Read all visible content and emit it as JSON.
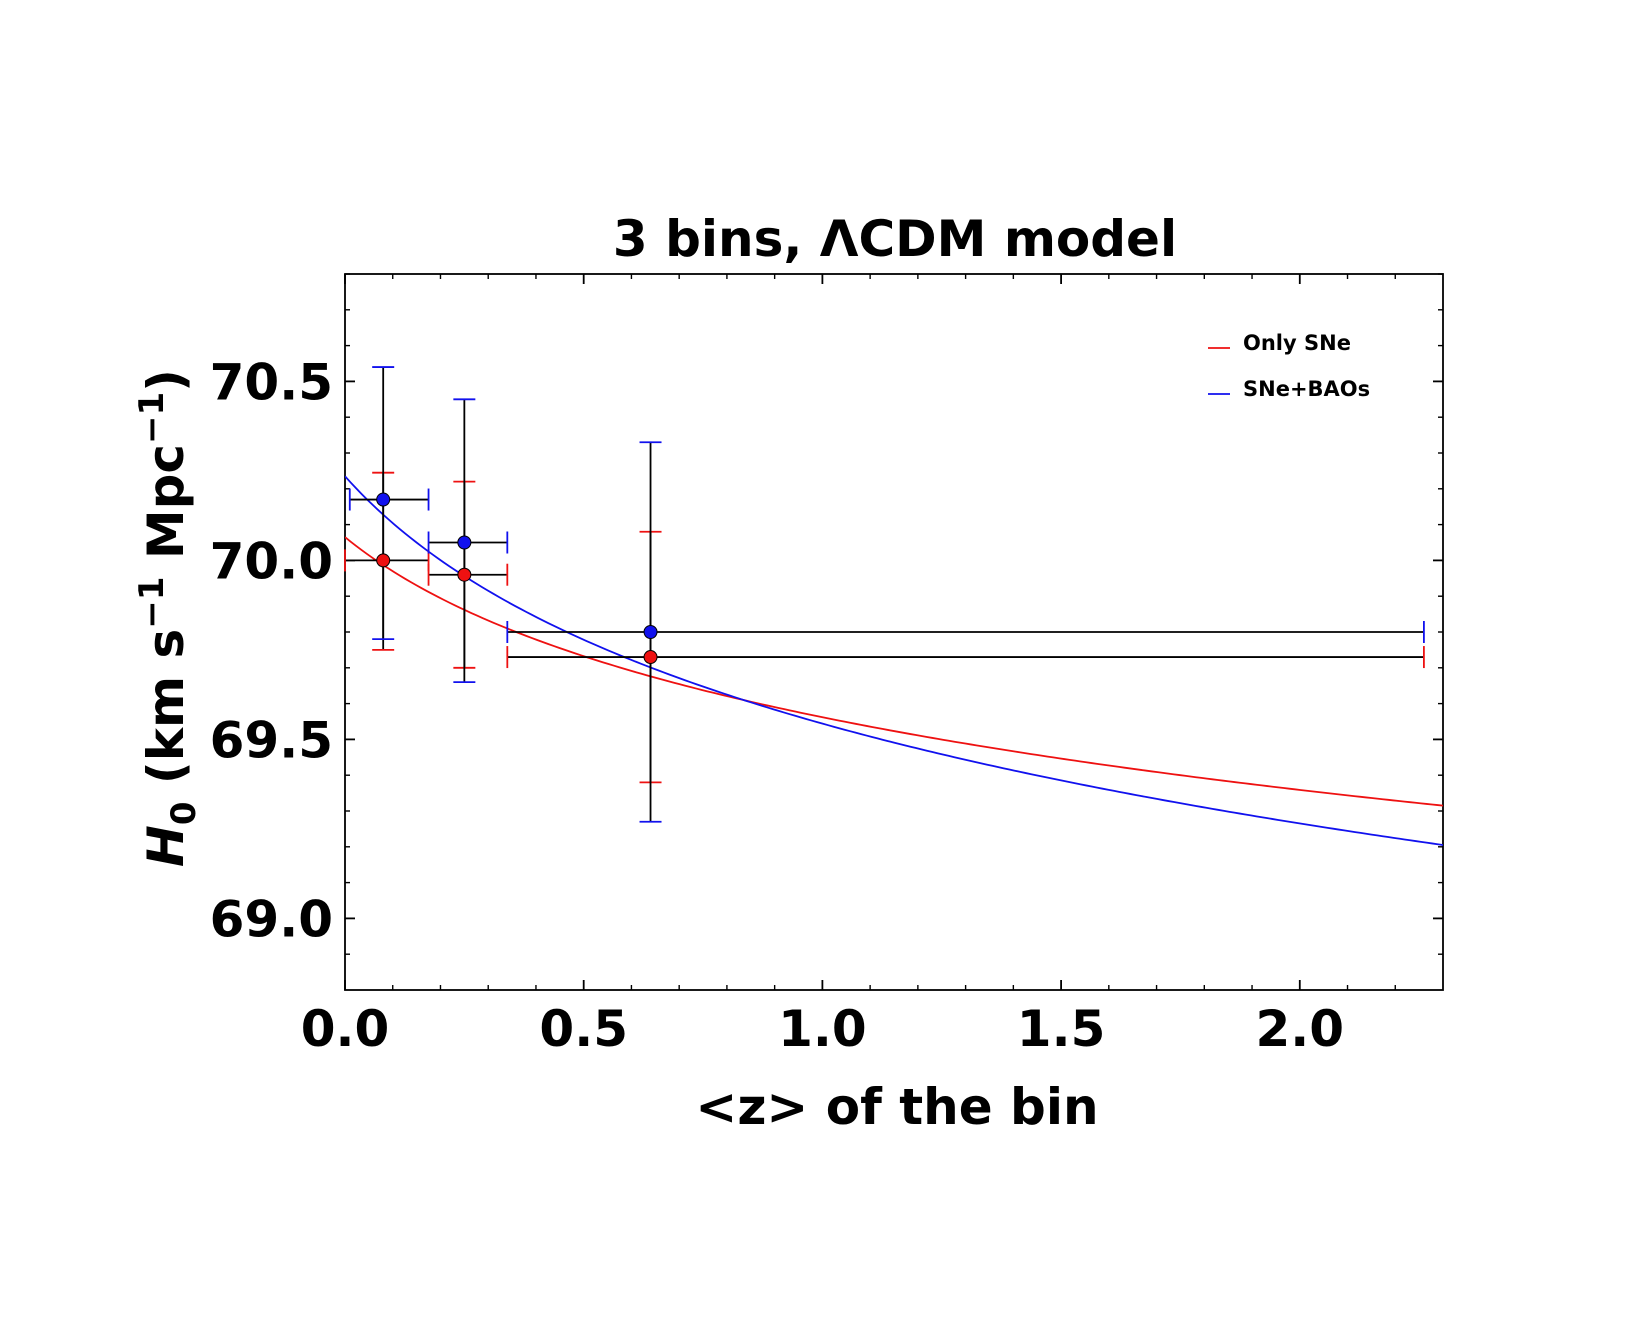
{
  "chart_data": {
    "type": "scatter",
    "title": "3 bins, ΛCDM model",
    "xlabel": "<z> of the bin",
    "ylabel": {
      "symbol": "H",
      "subscript": "0",
      "unit_open": " (km s",
      "unit_exp1": "−1",
      "unit_mid": " Mpc",
      "unit_exp2": "−1",
      "unit_close": ")"
    },
    "xlim": [
      0.0,
      2.3
    ],
    "ylim": [
      68.8,
      70.8
    ],
    "xticks": [
      0.0,
      0.5,
      1.0,
      1.5,
      2.0
    ],
    "xtick_labels": [
      "0.0",
      "0.5",
      "1.0",
      "1.5",
      "2.0"
    ],
    "yticks": [
      69.0,
      69.5,
      70.0,
      70.5
    ],
    "ytick_labels": [
      "69.0",
      "69.5",
      "70.0",
      "70.5"
    ],
    "legend_position": "top-right",
    "series": [
      {
        "name": "Only SNe",
        "color": "#ee1111",
        "points": [
          {
            "x": 0.08,
            "y": 70.0,
            "xmin": 0.0,
            "xmax": 0.175,
            "ymin": 69.75,
            "ymax": 70.245
          },
          {
            "x": 0.25,
            "y": 69.96,
            "xmin": 0.175,
            "xmax": 0.34,
            "ymin": 69.7,
            "ymax": 70.22
          },
          {
            "x": 0.64,
            "y": 69.73,
            "xmin": 0.34,
            "xmax": 2.26,
            "ymin": 69.38,
            "ymax": 70.08
          }
        ],
        "fit": {
          "H0_at_0": 70.065,
          "H0_at_xmax": 69.315,
          "shape": "log"
        }
      },
      {
        "name": "SNe+BAOs",
        "color": "#1111ee",
        "points": [
          {
            "x": 0.08,
            "y": 70.17,
            "xmin": 0.01,
            "xmax": 0.175,
            "ymin": 69.78,
            "ymax": 70.54
          },
          {
            "x": 0.25,
            "y": 70.05,
            "xmin": 0.175,
            "xmax": 0.34,
            "ymin": 69.66,
            "ymax": 70.45
          },
          {
            "x": 0.64,
            "y": 69.8,
            "xmin": 0.34,
            "xmax": 2.26,
            "ymin": 69.27,
            "ymax": 70.33
          }
        ],
        "fit": {
          "H0_at_0": 70.235,
          "H0_at_xmax": 69.205,
          "shape": "log"
        }
      }
    ]
  }
}
